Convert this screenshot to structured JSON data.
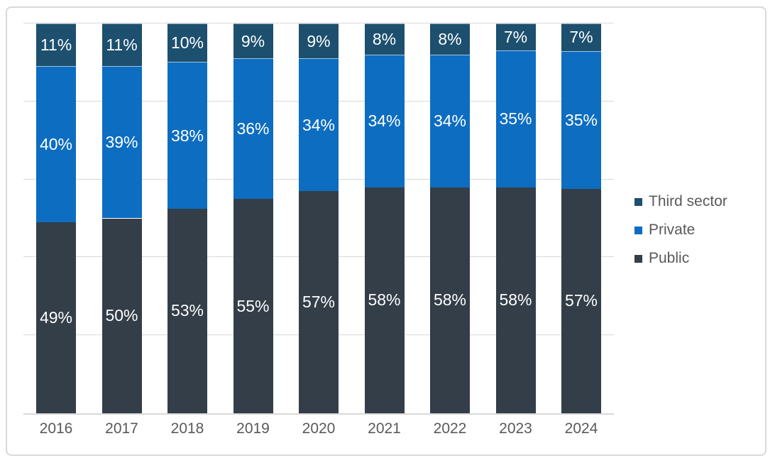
{
  "chart_data": {
    "type": "bar",
    "variant": "stacked-100-percent-column",
    "title": "",
    "xlabel": "",
    "ylabel": "",
    "categories": [
      "2016",
      "2017",
      "2018",
      "2019",
      "2020",
      "2021",
      "2022",
      "2023",
      "2024"
    ],
    "series": [
      {
        "name": "Public",
        "color": "#333E48",
        "values": [
          49,
          50,
          53,
          55,
          57,
          58,
          58,
          58,
          57
        ]
      },
      {
        "name": "Private",
        "color": "#0D6DC1",
        "values": [
          40,
          39,
          38,
          36,
          34,
          34,
          34,
          35,
          35
        ]
      },
      {
        "name": "Third sector",
        "color": "#1D4F6E",
        "values": [
          11,
          11,
          10,
          9,
          9,
          8,
          8,
          7,
          7
        ]
      }
    ],
    "data_label_suffix": "%",
    "ylim": [
      0,
      100
    ],
    "grid": {
      "horizontal": true,
      "interval_percent": 20,
      "color": "#D9D9D9"
    },
    "legend": {
      "position": "right",
      "entries": [
        {
          "label": "Third sector",
          "color": "#1D4F6E"
        },
        {
          "label": "Private",
          "color": "#0D6DC1"
        },
        {
          "label": "Public",
          "color": "#333E48"
        }
      ]
    }
  },
  "styles": {
    "frame_border_color": "#D9D9D9",
    "axis_text_color": "#595959",
    "data_label_color": "#FFFFFF",
    "background": "#FFFFFF"
  }
}
